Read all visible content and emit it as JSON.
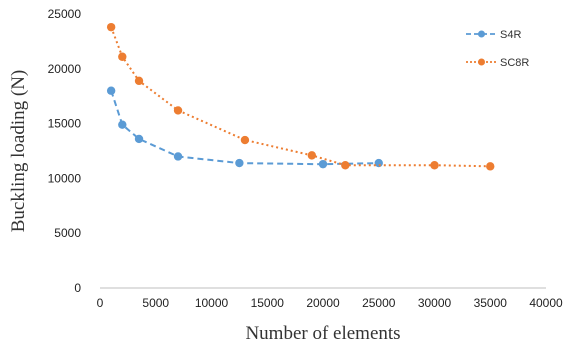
{
  "chart_data": {
    "type": "line",
    "xlabel": "Number of elements",
    "ylabel": "Buckling loading (N)",
    "xlim": [
      0,
      40000
    ],
    "ylim": [
      0,
      25000
    ],
    "x_ticks": [
      "0",
      "5000",
      "10000",
      "15000",
      "20000",
      "25000",
      "30000",
      "35000",
      "40000"
    ],
    "y_ticks": [
      "0",
      "5000",
      "10000",
      "15000",
      "20000",
      "25000"
    ],
    "grid": false,
    "legend_position": "top-right",
    "series": [
      {
        "name": "S4R",
        "color": "#5b9bd5",
        "line_style": "dashed",
        "x": [
          1000,
          2000,
          3500,
          7000,
          12500,
          20000,
          25000
        ],
        "y": [
          18000,
          14900,
          13600,
          12000,
          11400,
          11300,
          11400
        ]
      },
      {
        "name": "SC8R",
        "color": "#ed7d31",
        "line_style": "dotted",
        "x": [
          1000,
          2000,
          3500,
          7000,
          13000,
          19000,
          22000,
          30000,
          35000
        ],
        "y": [
          23800,
          21100,
          18900,
          16200,
          13500,
          12100,
          11200,
          11200,
          11100
        ]
      }
    ]
  }
}
